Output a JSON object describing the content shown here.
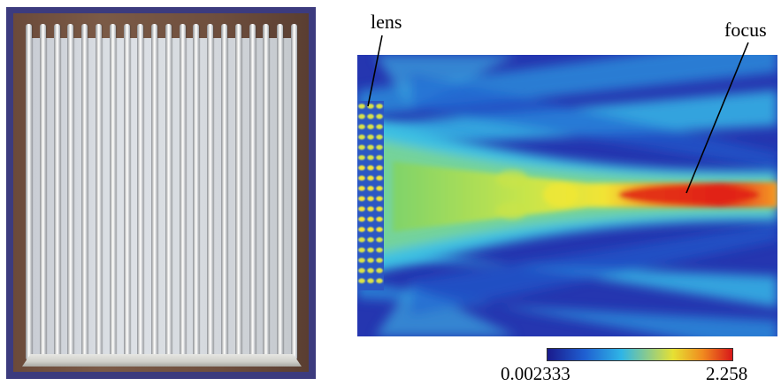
{
  "photo": {
    "description_icon": "rod-array-lens-photo",
    "rod_count": 20
  },
  "field_plot": {
    "annotations": {
      "lens": "lens",
      "focus": "focus"
    },
    "colorbar": {
      "min": "0.002333",
      "max": "2.258",
      "colormap": "jet"
    }
  },
  "colors": {
    "photo_border": "#3c3b7e",
    "field_background": "#2536b0",
    "focus_hot": "#d8181a"
  }
}
